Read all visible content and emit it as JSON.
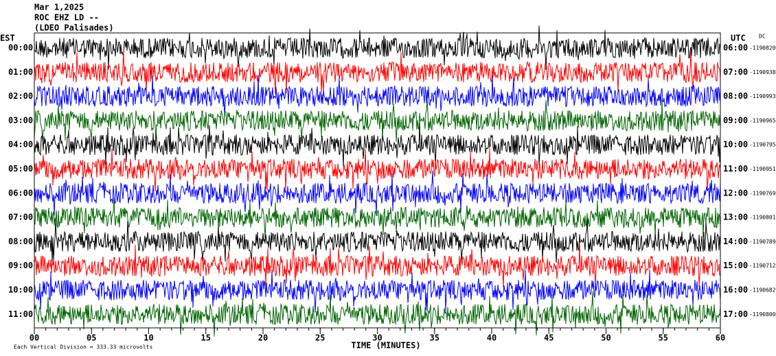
{
  "chart_data": {
    "type": "helicorder",
    "title": "Mar 1,2025",
    "subtitle": "ROC EHZ LD --",
    "network": "(LDEO Palisades)",
    "left_zone": "EST",
    "right_zone": "UTC",
    "dc_label": "DC",
    "xlabel": "TIME (MINUTES)",
    "scale_note": "Each Vertical Division = 333.33 microvolts",
    "colors": [
      "#000000",
      "#ff0000",
      "#0000ff",
      "#006400"
    ],
    "xlim": [
      0,
      60
    ],
    "xticks": [
      {
        "value": 0,
        "label": "00"
      },
      {
        "value": 5,
        "label": "05"
      },
      10,
      15,
      20,
      25,
      30,
      35,
      40,
      45,
      50,
      55,
      60
    ],
    "rows": [
      {
        "est": "00:00",
        "utc": "06:00",
        "dc": -1190820
      },
      {
        "est": "01:00",
        "utc": "07:00",
        "dc": -1190938
      },
      {
        "est": "02:00",
        "utc": "08:00",
        "dc": -1190993
      },
      {
        "est": "03:00",
        "utc": "09:00",
        "dc": -1190965
      },
      {
        "est": "04:00",
        "utc": "10:00",
        "dc": -1190795
      },
      {
        "est": "05:00",
        "utc": "11:00",
        "dc": -1190951
      },
      {
        "est": "06:00",
        "utc": "12:00",
        "dc": -1190769
      },
      {
        "est": "07:00",
        "utc": "13:00",
        "dc": -1190801
      },
      {
        "est": "08:00",
        "utc": "14:00",
        "dc": -1190789
      },
      {
        "est": "09:00",
        "utc": "15:00",
        "dc": -1190712
      },
      {
        "est": "10:00",
        "utc": "16:00",
        "dc": -1190682
      },
      {
        "est": "11:00",
        "utc": "17:00",
        "dc": -1190800
      }
    ]
  }
}
